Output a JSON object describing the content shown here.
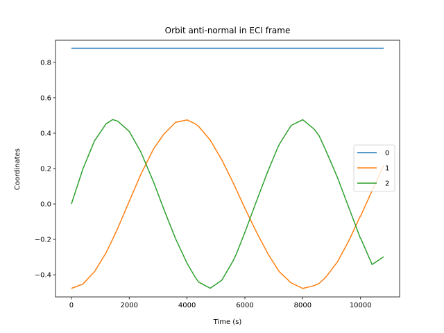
{
  "chart_data": {
    "type": "line",
    "title": "Orbit anti-normal in ECI frame",
    "xlabel": "Time (s)",
    "ylabel": "Coordinates",
    "xlim": [
      -550,
      11350
    ],
    "ylim": [
      -0.525,
      0.925
    ],
    "xticks": [
      0,
      2000,
      4000,
      6000,
      8000,
      10000
    ],
    "xtick_labels": [
      "0",
      "2000",
      "4000",
      "6000",
      "8000",
      "10000"
    ],
    "yticks": [
      -0.4,
      -0.2,
      0.0,
      0.2,
      0.4,
      0.6,
      0.8
    ],
    "ytick_labels": [
      "−0.4",
      "−0.2",
      "0.0",
      "0.2",
      "0.4",
      "0.6",
      "0.8"
    ],
    "grid": false,
    "legend_position": "right",
    "x": [
      0,
      400,
      800,
      1200,
      1427,
      1600,
      2000,
      2400,
      2800,
      2855,
      3200,
      3600,
      4000,
      4282,
      4400,
      4800,
      5200,
      5600,
      5710,
      6000,
      6400,
      6800,
      7137,
      7200,
      7600,
      8000,
      8400,
      8565,
      8800,
      9200,
      9600,
      9992,
      10000,
      10400,
      10800
    ],
    "series": [
      {
        "name": "0",
        "color": "#1f77b4",
        "values": [
          0.88,
          0.88,
          0.88,
          0.88,
          0.88,
          0.88,
          0.88,
          0.88,
          0.88,
          0.88,
          0.88,
          0.88,
          0.88,
          0.88,
          0.88,
          0.88,
          0.88,
          0.88,
          0.88,
          0.88,
          0.88,
          0.88,
          0.88,
          0.88,
          0.88,
          0.88,
          0.88,
          0.88,
          0.88,
          0.88,
          0.88,
          0.88,
          0.88,
          0.88,
          0.88
        ]
      },
      {
        "name": "1",
        "color": "#ff7f0e",
        "values": [
          -0.477,
          -0.452,
          -0.382,
          -0.275,
          -0.199,
          -0.138,
          0.015,
          0.167,
          0.298,
          0.315,
          0.395,
          0.461,
          0.475,
          0.453,
          0.438,
          0.361,
          0.25,
          0.118,
          0.079,
          -0.024,
          -0.159,
          -0.282,
          -0.37,
          -0.384,
          -0.446,
          -0.477,
          -0.461,
          -0.449,
          -0.413,
          -0.327,
          -0.206,
          -0.068,
          -0.069,
          0.076,
          0.218
        ]
      },
      {
        "name": "2",
        "color": "#2ca02c",
        "values": [
          0.0,
          0.199,
          0.357,
          0.453,
          0.477,
          0.468,
          0.41,
          0.294,
          0.14,
          0.118,
          -0.031,
          -0.195,
          -0.335,
          -0.414,
          -0.441,
          -0.476,
          -0.431,
          -0.319,
          -0.28,
          -0.16,
          0.016,
          0.187,
          0.319,
          0.34,
          0.444,
          0.476,
          0.422,
          0.386,
          0.302,
          0.15,
          -0.023,
          -0.193,
          -0.192,
          -0.342,
          -0.298
        ]
      }
    ]
  }
}
